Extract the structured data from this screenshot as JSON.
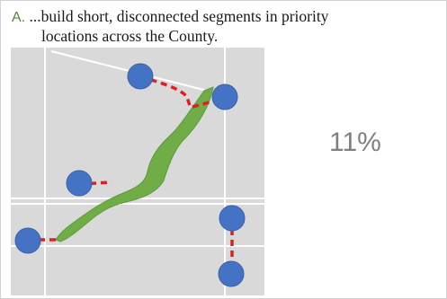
{
  "option": {
    "letter": "A.",
    "text_line1": "...build short, disconnected segments in priority",
    "text_line2": "locations across the County."
  },
  "result": {
    "percent": "11%"
  },
  "colors": {
    "map_bg": "#d9d9d9",
    "road": "#ffffff",
    "trail": "#70ad47",
    "node": "#4472c4",
    "gap": "#e02020",
    "letter": "#4f8a3c",
    "percent": "#7f7f7f"
  }
}
